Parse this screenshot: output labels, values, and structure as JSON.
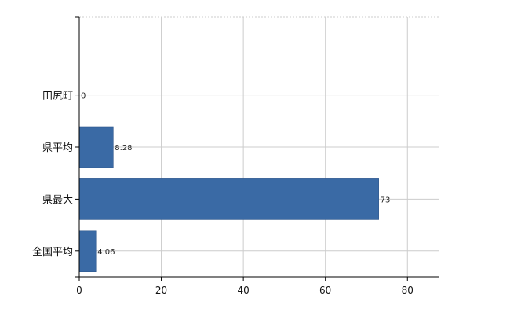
{
  "chart_data": {
    "type": "bar",
    "orientation": "horizontal",
    "categories": [
      "田尻町",
      "県平均",
      "県最大",
      "全国平均"
    ],
    "values": [
      0,
      8.28,
      73,
      4.06
    ],
    "data_labels": [
      "0",
      "8.28",
      "73",
      "4.06"
    ],
    "xlim": [
      0,
      87.6
    ],
    "x_ticks": [
      0,
      20,
      40,
      60,
      80
    ],
    "x_tick_labels": [
      "0",
      "20",
      "40",
      "60",
      "80"
    ],
    "title": "",
    "xlabel": "",
    "ylabel": "",
    "grid": true,
    "legend": "none",
    "bar_color": "#3a6aa5"
  }
}
